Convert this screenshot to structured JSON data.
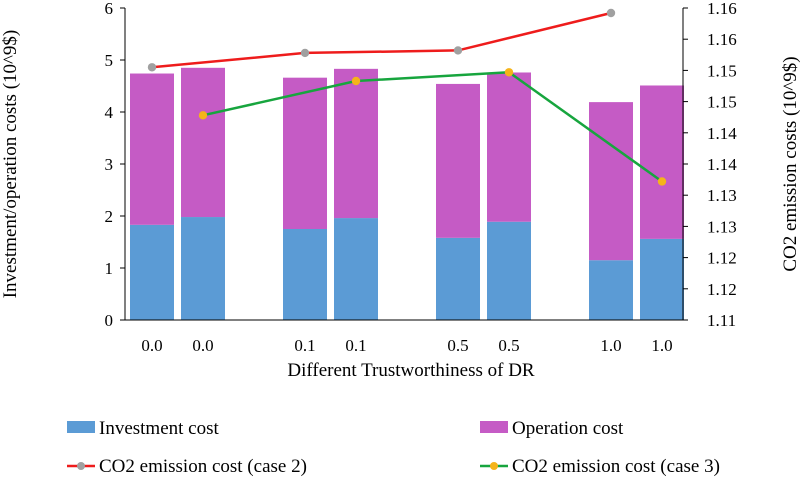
{
  "chart_data": {
    "type": "bar",
    "stacked": true,
    "categories": [
      "0.0",
      "0.0",
      "0.1",
      "0.1",
      "0.5",
      "0.5",
      "1.0",
      "1.0"
    ],
    "xlabel": "Different Trustworthiness of DR",
    "ylabel": "Investment/operation costs (10^9$)",
    "ylim": [
      0,
      6
    ],
    "yticks": [
      "0",
      "1",
      "2",
      "3",
      "4",
      "5",
      "6"
    ],
    "y2label": "CO2 emission costs (10^9$)",
    "y2lim": [
      1.11,
      1.16
    ],
    "y2ticks": [
      "1.11",
      "1.12",
      "1.12",
      "1.13",
      "1.13",
      "1.14",
      "1.14",
      "1.15",
      "1.15",
      "1.16",
      "1.16"
    ],
    "series": [
      {
        "name": "Investment cost",
        "kind": "bar",
        "color": "#5b9bd5",
        "values": [
          1.83,
          1.98,
          1.75,
          1.96,
          1.58,
          1.89,
          1.15,
          1.56
        ]
      },
      {
        "name": "Operation cost",
        "kind": "bar",
        "color": "#c55bc5",
        "values": [
          2.91,
          2.87,
          2.91,
          2.87,
          2.96,
          2.87,
          3.04,
          2.95
        ]
      }
    ],
    "lines": [
      {
        "name": "CO2 emission cost (case 2)",
        "axis": "right",
        "color": "#ee1c1c",
        "marker_color": "#a0a0a0",
        "category_index": [
          0,
          2,
          4,
          6
        ],
        "values": [
          1.1505,
          1.1528,
          1.1532,
          1.1592
        ]
      },
      {
        "name": "CO2 emission cost (case 3)",
        "axis": "right",
        "color": "#17a53e",
        "marker_color": "#f5b41a",
        "category_index": [
          1,
          3,
          5,
          7
        ],
        "values": [
          1.1428,
          1.1483,
          1.1497,
          1.1322
        ]
      }
    ],
    "legend": {
      "position": "bottom",
      "items": [
        {
          "label": "Investment cost",
          "symbol": "patch",
          "color": "#5b9bd5"
        },
        {
          "label": "Operation cost",
          "symbol": "patch",
          "color": "#c55bc5"
        },
        {
          "label": "CO2 emission cost (case 2)",
          "symbol": "line",
          "color": "#ee1c1c",
          "marker_color": "#a0a0a0"
        },
        {
          "label": "CO2 emission cost (case 3)",
          "symbol": "line",
          "color": "#17a53e",
          "marker_color": "#f5b41a"
        }
      ]
    }
  }
}
